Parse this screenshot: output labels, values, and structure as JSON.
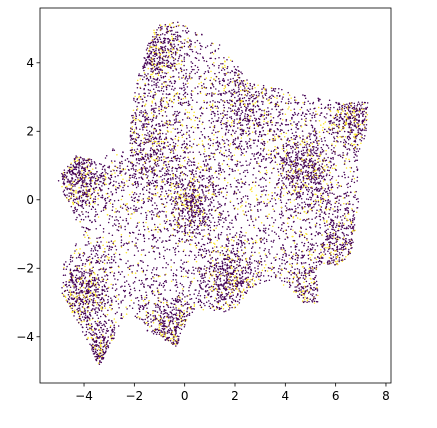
{
  "chart_data": {
    "type": "scatter",
    "title": "",
    "xlabel": "",
    "ylabel": "",
    "xlim": [
      -5.75,
      8.2
    ],
    "ylim": [
      -5.35,
      5.6
    ],
    "grid": false,
    "legend": "none",
    "x_ticks": [
      -4,
      -2,
      0,
      2,
      4,
      6,
      8
    ],
    "y_ticks": [
      -4,
      -2,
      0,
      2,
      4
    ],
    "x_tick_labels": [
      "−4",
      "−2",
      "0",
      "2",
      "4",
      "6",
      "8"
    ],
    "y_tick_labels": [
      "−4",
      "−2",
      "0",
      "2",
      "4"
    ],
    "colors": {
      "class_0": "#440154",
      "class_1": "#fde725"
    },
    "series": [
      {
        "class": 0,
        "color": "#440154",
        "approx_fraction": 0.8
      },
      {
        "class": 1,
        "color": "#fde725",
        "approx_fraction": 0.2
      }
    ],
    "point_cloud_approx_count": 9000,
    "dense_clusters": [
      {
        "x": -1.0,
        "y": 4.3,
        "density": "high"
      },
      {
        "x": -4.2,
        "y": 0.6,
        "density": "high"
      },
      {
        "x": -4.0,
        "y": -2.8,
        "density": "high"
      },
      {
        "x": -3.3,
        "y": -4.5,
        "density": "high"
      },
      {
        "x": 0.3,
        "y": -0.1,
        "density": "high"
      },
      {
        "x": -0.6,
        "y": -3.8,
        "density": "high"
      },
      {
        "x": 1.8,
        "y": -2.3,
        "density": "high"
      },
      {
        "x": 4.8,
        "y": 0.9,
        "density": "high"
      },
      {
        "x": 6.8,
        "y": 2.5,
        "density": "high"
      },
      {
        "x": 6.3,
        "y": -1.4,
        "density": "medium"
      },
      {
        "x": 5.0,
        "y": -2.8,
        "density": "medium"
      },
      {
        "x": 2.5,
        "y": 2.8,
        "density": "medium"
      },
      {
        "x": -1.5,
        "y": 1.5,
        "density": "medium"
      }
    ],
    "hull": [
      [
        -0.3,
        5.2
      ],
      [
        1.3,
        4.6
      ],
      [
        2.1,
        3.9
      ],
      [
        2.6,
        3.4
      ],
      [
        3.5,
        3.3
      ],
      [
        4.4,
        3.1
      ],
      [
        5.4,
        3.0
      ],
      [
        6.3,
        2.8
      ],
      [
        7.3,
        2.9
      ],
      [
        7.2,
        1.9
      ],
      [
        6.9,
        1.2
      ],
      [
        6.9,
        -0.4
      ],
      [
        6.6,
        -1.6
      ],
      [
        6.1,
        -1.9
      ],
      [
        5.3,
        -1.9
      ],
      [
        5.3,
        -3.0
      ],
      [
        4.8,
        -3.1
      ],
      [
        4.3,
        -2.7
      ],
      [
        3.6,
        -2.3
      ],
      [
        2.6,
        -2.6
      ],
      [
        2.0,
        -3.2
      ],
      [
        1.0,
        -3.4
      ],
      [
        0.5,
        -3.1
      ],
      [
        0.1,
        -3.5
      ],
      [
        -0.3,
        -4.3
      ],
      [
        -1.0,
        -4.0
      ],
      [
        -1.6,
        -3.8
      ],
      [
        -2.2,
        -3.2
      ],
      [
        -3.0,
        -4.3
      ],
      [
        -3.4,
        -4.9
      ],
      [
        -3.8,
        -4.2
      ],
      [
        -4.4,
        -3.4
      ],
      [
        -4.9,
        -2.7
      ],
      [
        -4.8,
        -1.7
      ],
      [
        -4.4,
        -1.5
      ],
      [
        -4.2,
        -1.0
      ],
      [
        -4.4,
        -0.4
      ],
      [
        -5.1,
        0.6
      ],
      [
        -4.3,
        1.3
      ],
      [
        -3.3,
        1.1
      ],
      [
        -2.9,
        1.6
      ],
      [
        -2.2,
        1.3
      ],
      [
        -2.1,
        3.0
      ],
      [
        -1.7,
        4.0
      ],
      [
        -1.2,
        5.1
      ]
    ]
  }
}
